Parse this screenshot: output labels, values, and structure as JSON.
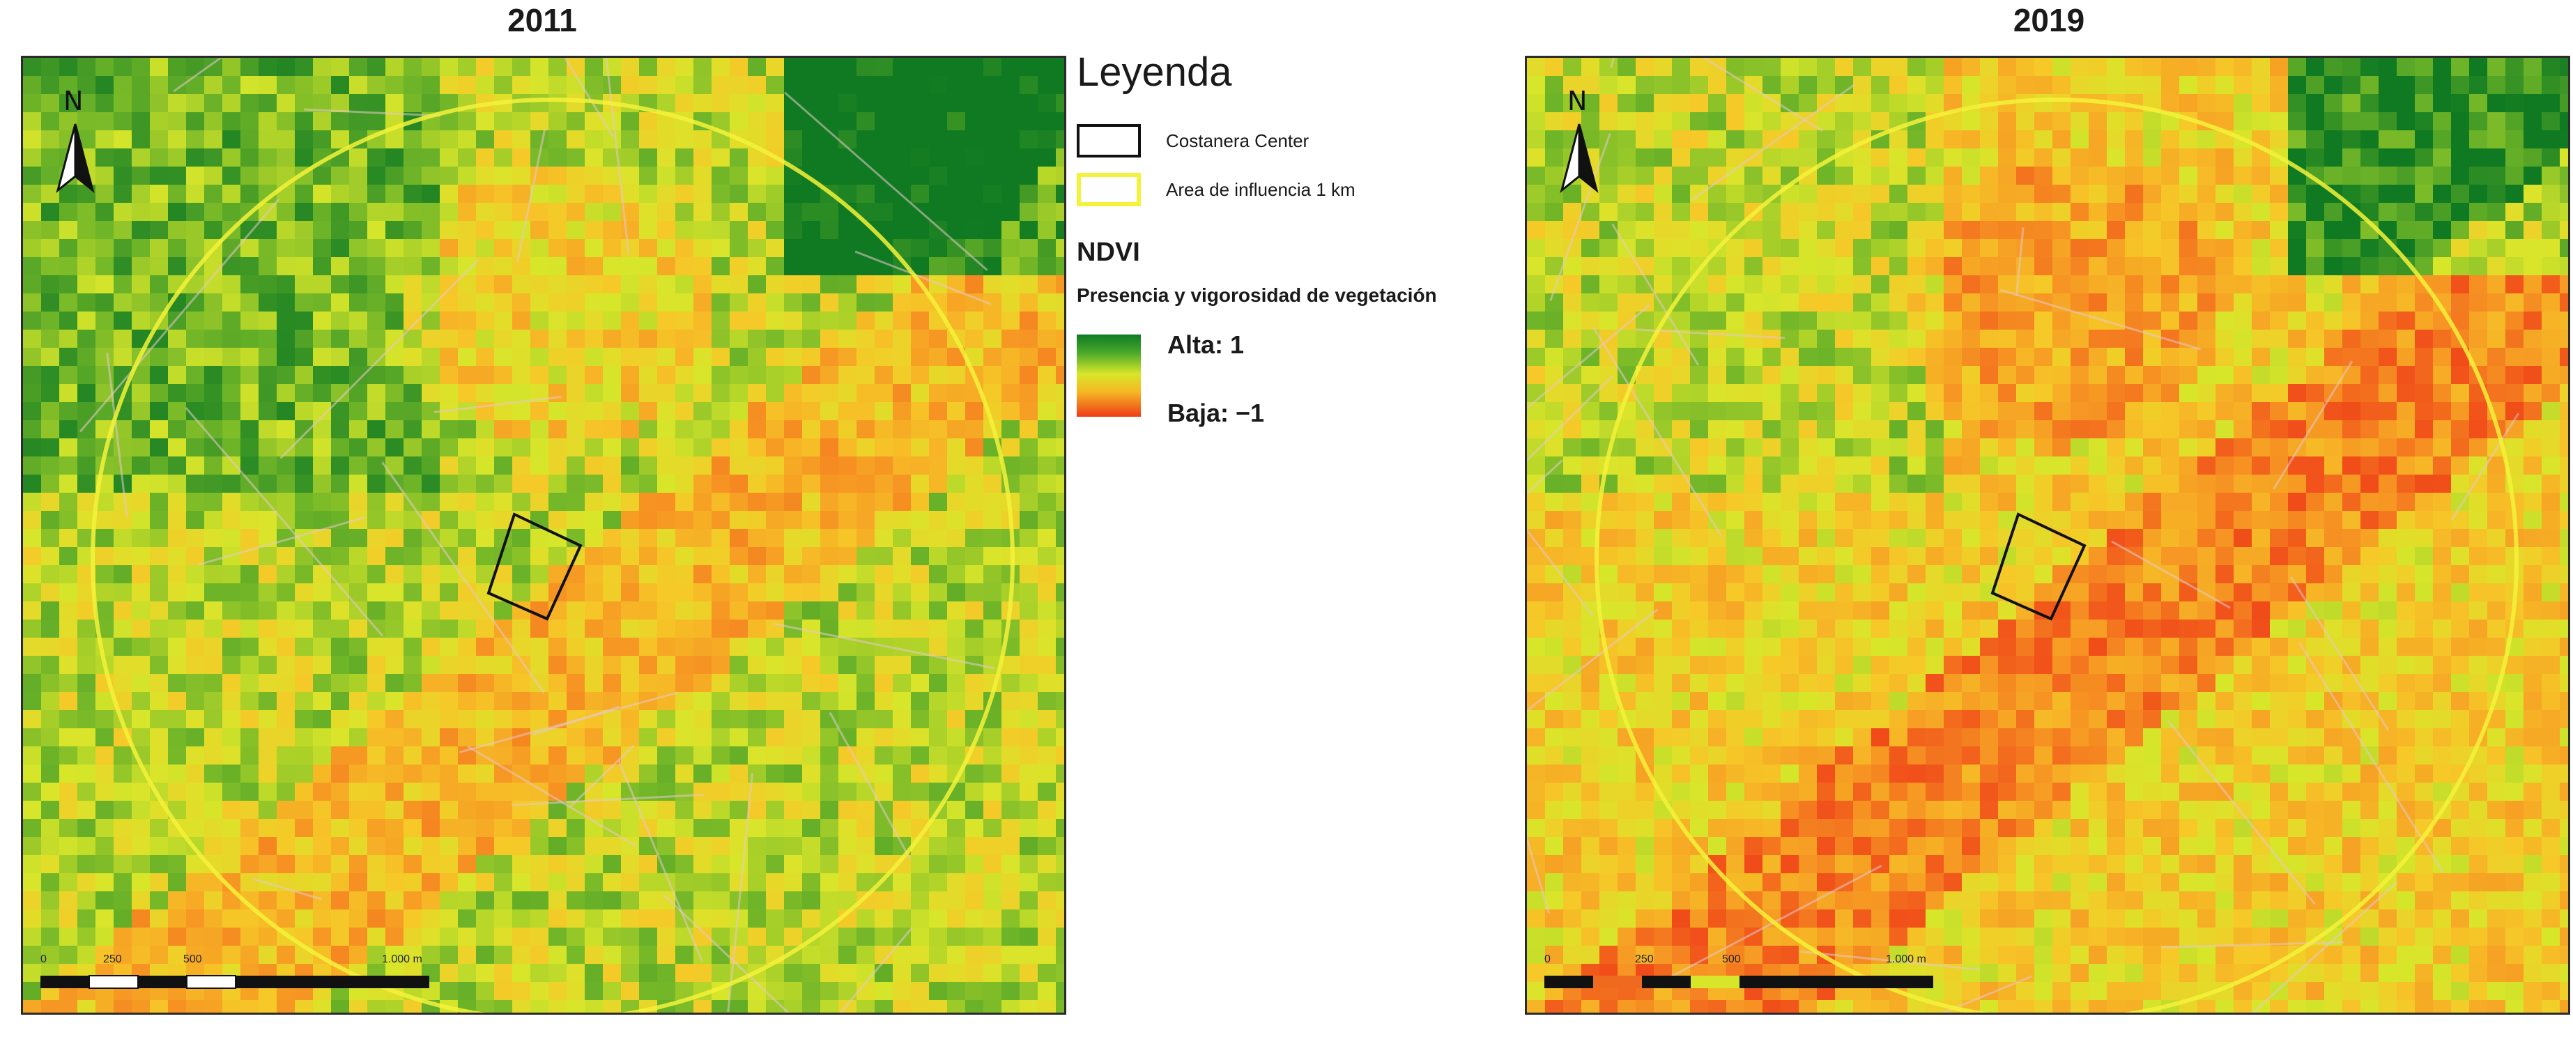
{
  "maps": [
    {
      "title": "2011",
      "scale_labels": [
        "0",
        "250",
        "500",
        "1.000 m"
      ]
    },
    {
      "title": "2019",
      "scale_labels": [
        "0",
        "250",
        "500",
        "1.000 m"
      ]
    }
  ],
  "north_label": "N",
  "legend": {
    "title": "Leyenda",
    "items": [
      {
        "label": "Costanera Center",
        "outline_color": "#111111"
      },
      {
        "label": "Area de influencia 1 km",
        "outline_color": "#f4f23a"
      }
    ],
    "ndvi_title": "NDVI",
    "ndvi_subtitle": "Presencia y vigorosidad de vegetación",
    "high_label": "Alta: 1",
    "low_label": "Baja: −1"
  },
  "colors": {
    "ndvi_high": "#0f7a22",
    "ndvi_mid": "#d8e62a",
    "ndvi_low": "#ef3b17",
    "influence_ring": "#f4f23a",
    "building_outline": "#111111"
  }
}
